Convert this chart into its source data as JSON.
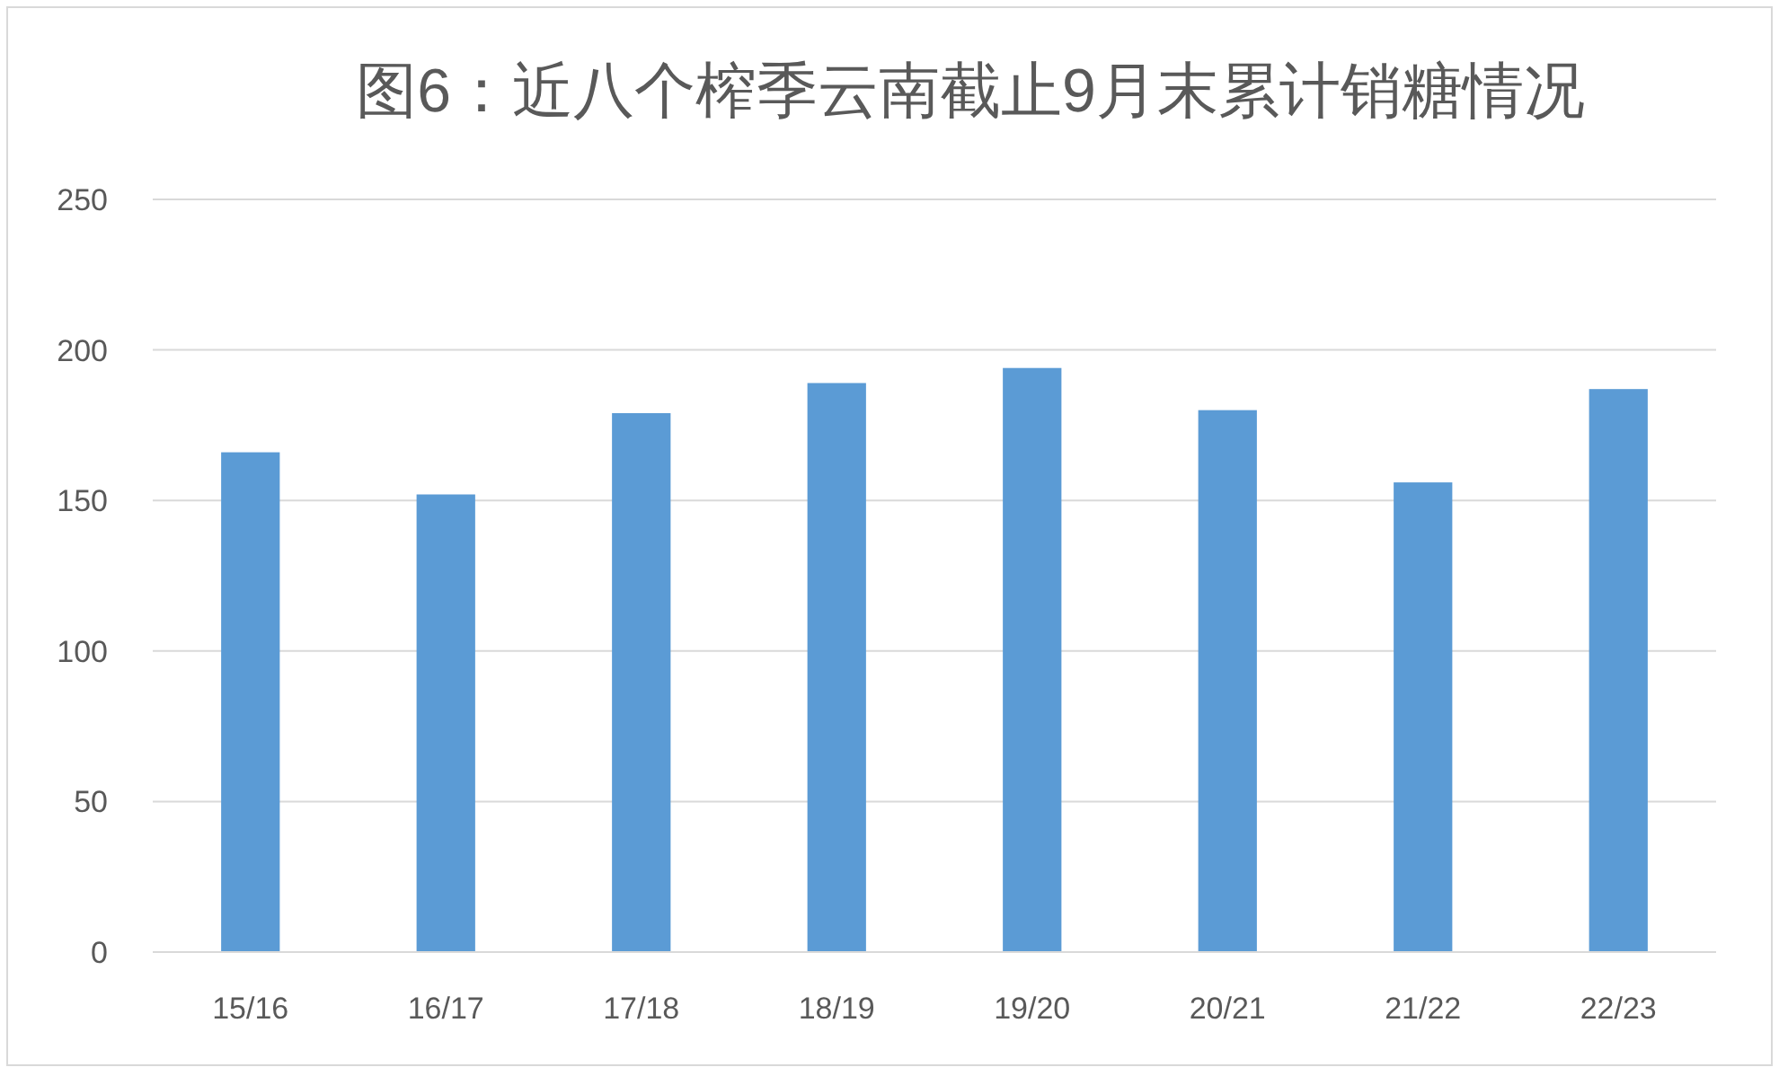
{
  "chart_data": {
    "type": "bar",
    "title": "图6：近八个榨季云南截止9月末累计销糖情况",
    "categories": [
      "15/16",
      "16/17",
      "17/18",
      "18/19",
      "19/20",
      "20/21",
      "21/22",
      "22/23"
    ],
    "values": [
      166,
      152,
      179,
      189,
      194,
      180,
      156,
      187
    ],
    "color": "#5b9bd5",
    "ylim": [
      0,
      250
    ],
    "yticks": [
      0,
      50,
      100,
      150,
      200,
      250
    ],
    "grid": "y"
  }
}
